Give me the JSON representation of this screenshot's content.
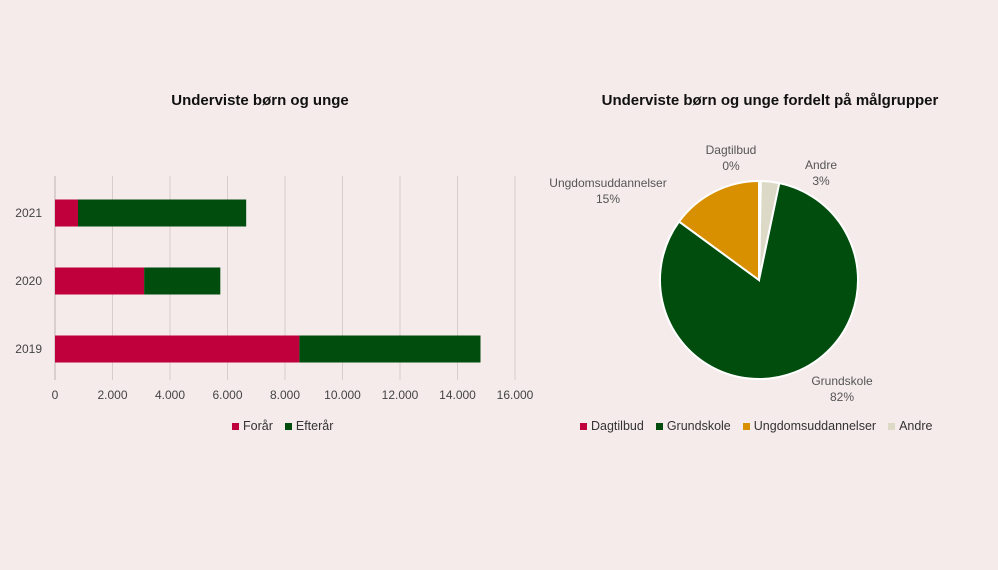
{
  "chart_data": [
    {
      "type": "bar",
      "orientation": "horizontal",
      "stacked": true,
      "title": "Underviste børn og unge",
      "categories": [
        "2021",
        "2020",
        "2019"
      ],
      "series": [
        {
          "name": "Forår",
          "color": "#c0003c",
          "values": [
            800,
            3100,
            8500
          ]
        },
        {
          "name": "Efterår",
          "color": "#004d0d",
          "values": [
            5850,
            2650,
            6300
          ]
        }
      ],
      "xlim": [
        0,
        16000
      ],
      "xticks": [
        0,
        2000,
        4000,
        6000,
        8000,
        10000,
        12000,
        14000,
        16000
      ],
      "xtick_labels": [
        "0",
        "2.000",
        "4.000",
        "6.000",
        "8.000",
        "10.000",
        "12.000",
        "14.000",
        "16.000"
      ],
      "grid": "vertical",
      "legend_position": "bottom"
    },
    {
      "type": "pie",
      "title": "Underviste børn og unge fordelt på målgrupper",
      "slices": [
        {
          "name": "Dagtilbud",
          "value": 0.3,
          "label": "Dagtilbud",
          "pct_label": "0%",
          "color": "#c0003c"
        },
        {
          "name": "Andre",
          "value": 3,
          "label": "Andre",
          "pct_label": "3%",
          "color": "#dcd9c6"
        },
        {
          "name": "Grundskole",
          "value": 82,
          "label": "Grundskole",
          "pct_label": "82%",
          "color": "#004d0d"
        },
        {
          "name": "Ungdomsuddannelser",
          "value": 15,
          "label": "Ungdomsuddannelser",
          "pct_label": "15%",
          "color": "#d99000"
        }
      ],
      "legend": [
        "Dagtilbud",
        "Grundskole",
        "Ungdomsuddannelser",
        "Andre"
      ],
      "legend_position": "bottom"
    }
  ]
}
